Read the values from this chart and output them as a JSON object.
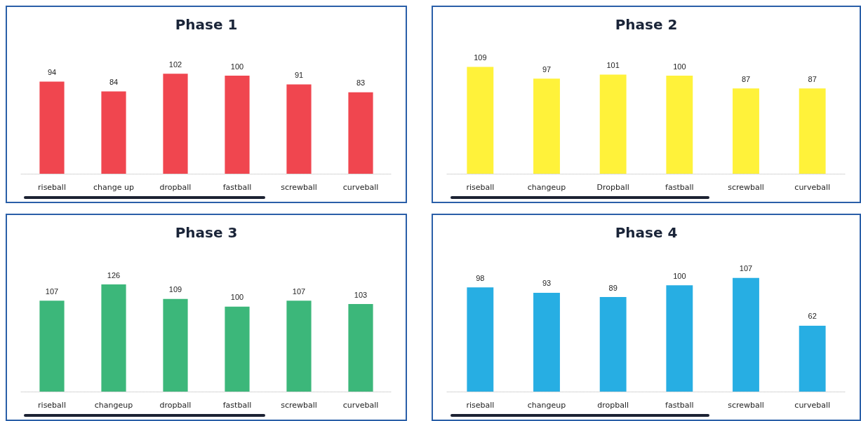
{
  "chart_data": [
    {
      "type": "bar",
      "title": "Phase 1",
      "categories": [
        "riseball",
        "change up",
        "dropball",
        "fastball",
        "screwball",
        "curveball"
      ],
      "values": [
        94,
        84,
        102,
        100,
        91,
        83
      ],
      "color": "#f0464f",
      "data_labels": true
    },
    {
      "type": "bar",
      "title": "Phase 2",
      "categories": [
        "riseball",
        "changeup",
        "Dropball",
        "fastball",
        "screwball",
        "curveball"
      ],
      "values": [
        109,
        97,
        101,
        100,
        87,
        87
      ],
      "color": "#fff23a",
      "data_labels": true
    },
    {
      "type": "bar",
      "title": "Phase 3",
      "categories": [
        "riseball",
        "changeup",
        "dropball",
        "fastball",
        "screwball",
        "curveball"
      ],
      "values": [
        107,
        126,
        109,
        100,
        107,
        103
      ],
      "color": "#3cb77a",
      "data_labels": true
    },
    {
      "type": "bar",
      "title": "Phase 4",
      "categories": [
        "riseball",
        "changeup",
        "dropball",
        "fastball",
        "screwball",
        "curveball"
      ],
      "values": [
        98,
        93,
        89,
        100,
        107,
        62
      ],
      "color": "#27aee3",
      "data_labels": true
    }
  ]
}
